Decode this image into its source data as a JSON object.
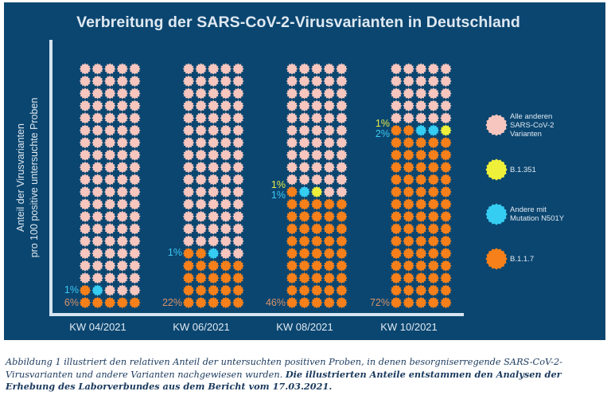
{
  "chart_data": {
    "type": "waffle",
    "title": "Verbreitung der SARS-CoV-2-Virusvarianten in Deutschland",
    "ylabel": [
      "Anteil der Virusvarianten",
      "pro 100 positive untersuchte Proben"
    ],
    "xlabel": "",
    "grid": {
      "columns": 5,
      "rows": 20,
      "total": 100
    },
    "categories": [
      "KW 04/2021",
      "KW 06/2021",
      "KW 08/2021",
      "KW 10/2021"
    ],
    "series": [
      {
        "key": "b117",
        "name": "B.1.1.7",
        "color": "#f7801a",
        "values": [
          6,
          22,
          46,
          72
        ]
      },
      {
        "key": "n501y",
        "name": "Andere mit Mutation N501Y",
        "color": "#36cdf3",
        "values": [
          1,
          1,
          1,
          2
        ]
      },
      {
        "key": "b1351",
        "name": "B.1.351",
        "color": "#eef03a",
        "values": [
          0,
          0,
          1,
          1
        ]
      },
      {
        "key": "other",
        "name": "Alle anderen SARS-CoV-2 Varianten",
        "color": "#f7c6be",
        "values": [
          93,
          77,
          52,
          25
        ]
      }
    ],
    "labels": [
      {
        "category": 0,
        "b117": "6%",
        "n501y": "1%",
        "b1351": ""
      },
      {
        "category": 1,
        "b117": "22%",
        "n501y": "1%",
        "b1351": ""
      },
      {
        "category": 2,
        "b117": "46%",
        "n501y": "1%",
        "b1351": "1%"
      },
      {
        "category": 3,
        "b117": "72%",
        "n501y": "2%",
        "b1351": "1%"
      }
    ],
    "legend": {
      "placement": "right",
      "entries": [
        {
          "key": "other",
          "lines": [
            "Alle anderen",
            "SARS-CoV-2",
            "Varianten"
          ]
        },
        {
          "key": "b1351",
          "lines": [
            "B.1.351"
          ]
        },
        {
          "key": "n501y",
          "lines": [
            "Andere mit",
            "Mutation N501Y"
          ]
        },
        {
          "key": "b117",
          "lines": [
            "B.1.1.7"
          ]
        }
      ]
    },
    "label_colors": {
      "b117": "#d9926a",
      "n501y": "#3cc8f0",
      "b1351": "#e4ea44"
    }
  },
  "caption": {
    "normal": "Abbildung 1 illustriert den relativen Anteil der untersuchten positiven Proben, in denen besorgniserregende SARS-CoV-2-Virusvarianten und andere Varianten nachgewiesen wurden. ",
    "bold": "Die illustrierten Anteile entstammen den Analysen der Erhebung des Laborverbundes aus dem Bericht vom 17.03.2021."
  }
}
